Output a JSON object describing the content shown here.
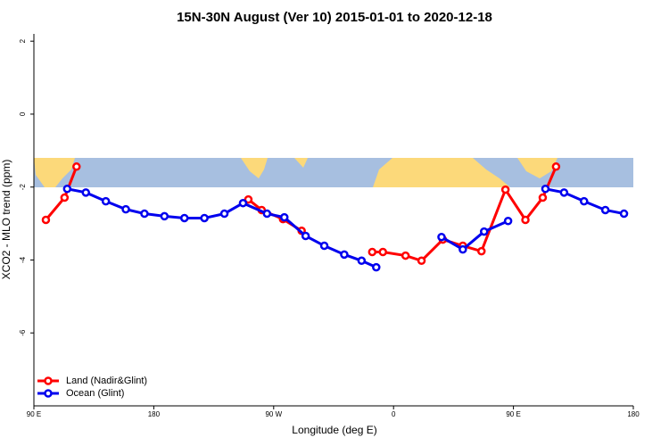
{
  "chart_data": {
    "type": "line",
    "title": "15N-30N August (Ver 10)   2015-01-01 to 2020-12-18",
    "x_label": "Longitude (deg E)",
    "y_label": "XCO2 - MLO trend (ppm)",
    "xlim": [
      90,
      540
    ],
    "ylim": [
      -8,
      2.2
    ],
    "xticks": [
      {
        "value": 90,
        "label": "90 E"
      },
      180,
      {
        "value": 270,
        "label": "90 W"
      },
      {
        "value": 360,
        "label": "0"
      },
      {
        "value": 450,
        "label": "90 E"
      },
      {
        "value": 540,
        "label": "180"
      }
    ],
    "yticks": [
      2,
      0,
      -2,
      -4,
      -6
    ],
    "legend": "bottom-left",
    "series": [
      {
        "name": "Land (Nadir&Glint)",
        "color": "#ff0000",
        "x": [
          99,
          113,
          122,
          null,
          251,
          261,
          277,
          291,
          null,
          344,
          352,
          369,
          381,
          397,
          412,
          426,
          444,
          459,
          472,
          482
        ],
        "values": [
          -2.9,
          -2.29,
          -1.44,
          null,
          -2.34,
          -2.63,
          -2.88,
          -3.2,
          null,
          -3.78,
          -3.78,
          -3.88,
          -4.02,
          -3.44,
          -3.61,
          -3.76,
          -2.07,
          -2.9,
          -2.29,
          -1.44
        ]
      },
      {
        "name": "Ocean (Glint)",
        "color": "#0000ee",
        "x": [
          115,
          129,
          144,
          159,
          173,
          188,
          203,
          218,
          233,
          247,
          265,
          278,
          294,
          308,
          323,
          336,
          347,
          null,
          396,
          412,
          428,
          446,
          null,
          474,
          488,
          503,
          519,
          533
        ],
        "values": [
          -2.05,
          -2.15,
          -2.39,
          -2.61,
          -2.73,
          -2.8,
          -2.85,
          -2.85,
          -2.73,
          -2.44,
          -2.73,
          -2.83,
          -3.34,
          -3.61,
          -3.85,
          -4.02,
          -4.2,
          null,
          -3.37,
          -3.71,
          -3.22,
          -2.93,
          null,
          -2.05,
          -2.15,
          -2.39,
          -2.63,
          -2.73
        ]
      }
    ]
  }
}
